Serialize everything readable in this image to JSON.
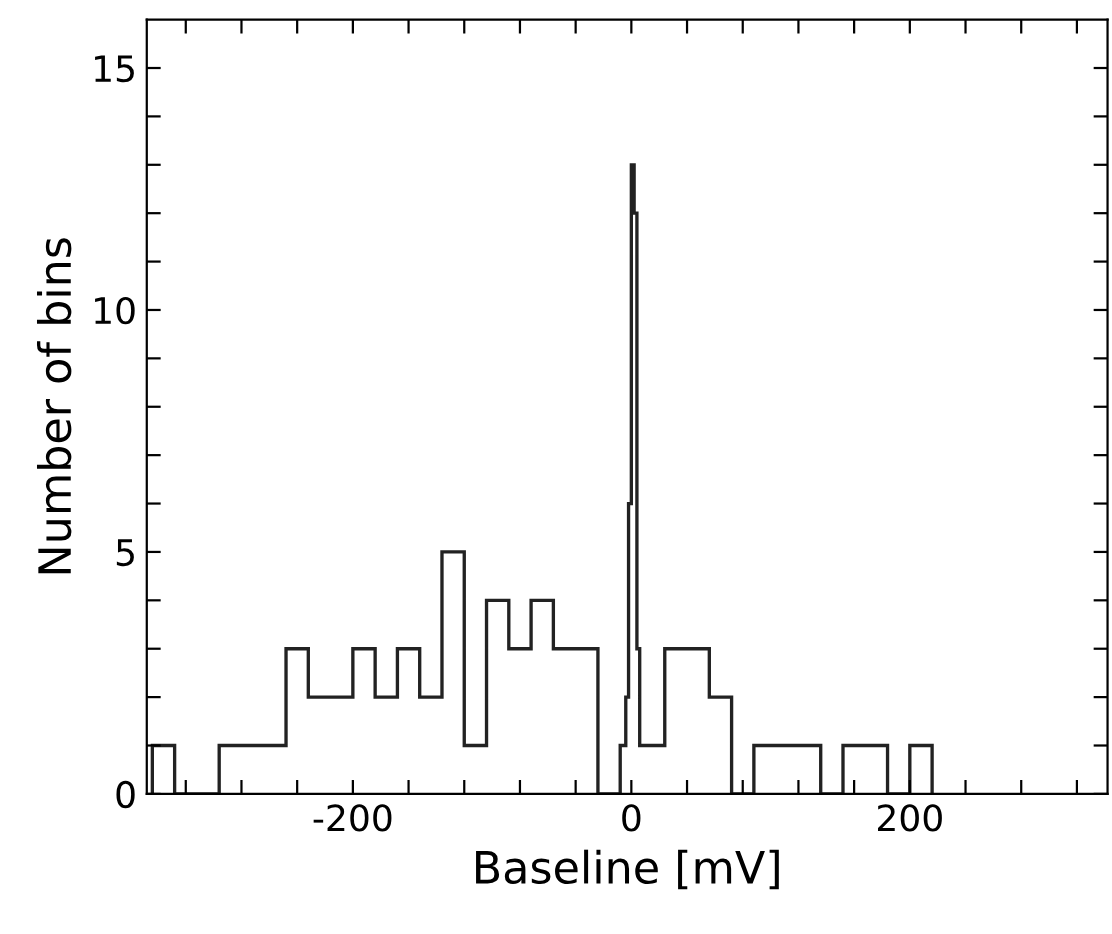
{
  "chart_data": {
    "type": "histogram",
    "xlabel": "Baseline [mV]",
    "ylabel": "Number of bins",
    "color": "#222222",
    "bins": [
      -344,
      -328,
      -312,
      -296,
      -280,
      -264,
      -248,
      -232,
      -216,
      -200,
      -184,
      -168,
      -152,
      -136,
      -120,
      -104,
      -88,
      -72,
      -56,
      -40,
      -24,
      -8,
      -4,
      -2,
      0,
      2,
      4,
      6,
      24,
      40,
      56,
      72,
      88,
      104,
      120,
      136,
      152,
      168,
      184,
      200,
      216
    ],
    "values": [
      1,
      0,
      0,
      1,
      1,
      1,
      3,
      2,
      2,
      3,
      2,
      3,
      2,
      5,
      1,
      4,
      3,
      4,
      3,
      3,
      0,
      1,
      2,
      6,
      13,
      12,
      3,
      1,
      3,
      3,
      2,
      0,
      1,
      1,
      1,
      0,
      1,
      1,
      0,
      1
    ],
    "xlim": [
      -348,
      342
    ],
    "ylim": [
      0,
      16
    ],
    "xticks": [
      {
        "value": -320,
        "label": null
      },
      {
        "value": -280,
        "label": null
      },
      {
        "value": -240,
        "label": null
      },
      -200,
      {
        "value": -160,
        "label": null
      },
      {
        "value": -120,
        "label": null
      },
      {
        "value": -80,
        "label": null
      },
      {
        "value": -40,
        "label": null
      },
      0,
      {
        "value": 40,
        "label": null
      },
      {
        "value": 80,
        "label": null
      },
      {
        "value": 120,
        "label": null
      },
      {
        "value": 160,
        "label": null
      },
      200,
      {
        "value": 240,
        "label": null
      },
      {
        "value": 280,
        "label": null
      },
      {
        "value": 320,
        "label": null
      }
    ],
    "yticks": [
      0,
      {
        "value": 1,
        "label": null
      },
      {
        "value": 2,
        "label": null
      },
      {
        "value": 3,
        "label": null
      },
      {
        "value": 4,
        "label": null
      },
      5,
      {
        "value": 6,
        "label": null
      },
      {
        "value": 7,
        "label": null
      },
      {
        "value": 8,
        "label": null
      },
      {
        "value": 9,
        "label": null
      },
      10,
      {
        "value": 11,
        "label": null
      },
      {
        "value": 12,
        "label": null
      },
      {
        "value": 13,
        "label": null
      },
      {
        "value": 14,
        "label": null
      },
      15
    ]
  }
}
